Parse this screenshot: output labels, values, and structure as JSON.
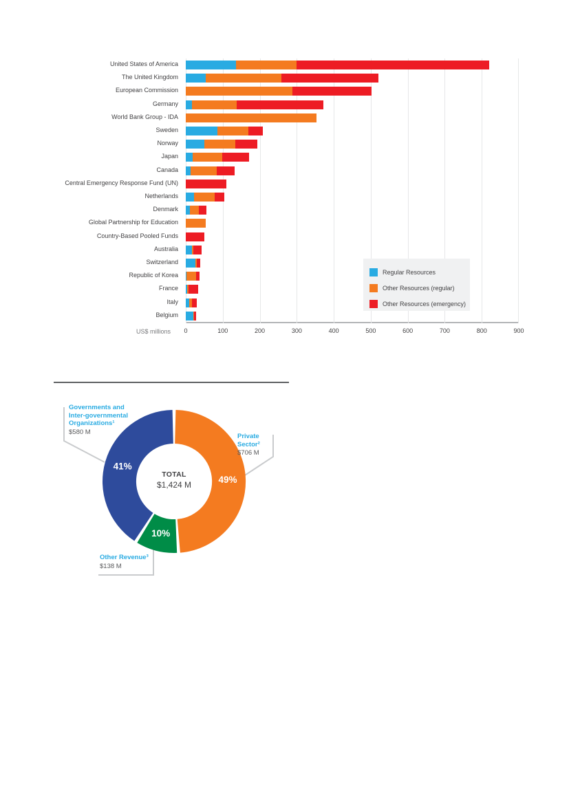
{
  "chart_data": [
    {
      "type": "bar",
      "orientation": "horizontal",
      "stacked": true,
      "unit_label": "US$ millions",
      "xlim": [
        0,
        900
      ],
      "xticks": [
        0,
        100,
        200,
        300,
        400,
        500,
        600,
        700,
        800,
        900
      ],
      "grid": true,
      "legend_position": "inside-right",
      "categories": [
        "United States of America",
        "The United Kingdom",
        "European Commission",
        "Germany",
        "World Bank Group - IDA",
        "Sweden",
        "Norway",
        "Japan",
        "Canada",
        "Central Emergency Response Fund (UN)",
        "Netherlands",
        "Denmark",
        "Global Partnership for Education",
        "Country-Based Pooled Funds",
        "Australia",
        "Switzerland",
        "Republic of Korea",
        "France",
        "Italy",
        "Belgium"
      ],
      "series": [
        {
          "name": "Regular Resources",
          "color": "#29abe2",
          "values": [
            135,
            54,
            0,
            17,
            0,
            86,
            50,
            19,
            13,
            0,
            23,
            12,
            0,
            0,
            16,
            26,
            1,
            3,
            9,
            20
          ]
        },
        {
          "name": "Other Resources (regular)",
          "color": "#f47b20",
          "values": [
            165,
            204,
            289,
            120,
            354,
            83,
            84,
            79,
            71,
            0,
            56,
            24,
            53,
            0,
            5,
            4,
            27,
            4,
            8,
            2
          ]
        },
        {
          "name": "Other Resources (emergency)",
          "color": "#ed1c24",
          "values": [
            521,
            262,
            214,
            234,
            0,
            40,
            60,
            74,
            48,
            110,
            25,
            19,
            0,
            50,
            22,
            10,
            10,
            26,
            13,
            6
          ]
        }
      ]
    },
    {
      "type": "pie",
      "subtype": "donut",
      "center_label": "TOTAL",
      "center_total": "$1,424 M",
      "slices": [
        {
          "label": "Private Sector",
          "label_lines": [
            "Private",
            "Sector²"
          ],
          "amount": "$706 M",
          "percent_label": "49%",
          "value": 49,
          "color": "#f47b20"
        },
        {
          "label": "Other Revenue",
          "label_lines": [
            "Other Revenue³"
          ],
          "amount": "$138 M",
          "percent_label": "10%",
          "value": 10,
          "color": "#008c47"
        },
        {
          "label": "Governments and Inter-governmental Organizations",
          "label_lines": [
            "Governments and",
            "Inter-governmental",
            "Organizations¹"
          ],
          "amount": "$580 M",
          "percent_label": "41%",
          "value": 41,
          "color": "#2e4b9c"
        }
      ]
    }
  ]
}
